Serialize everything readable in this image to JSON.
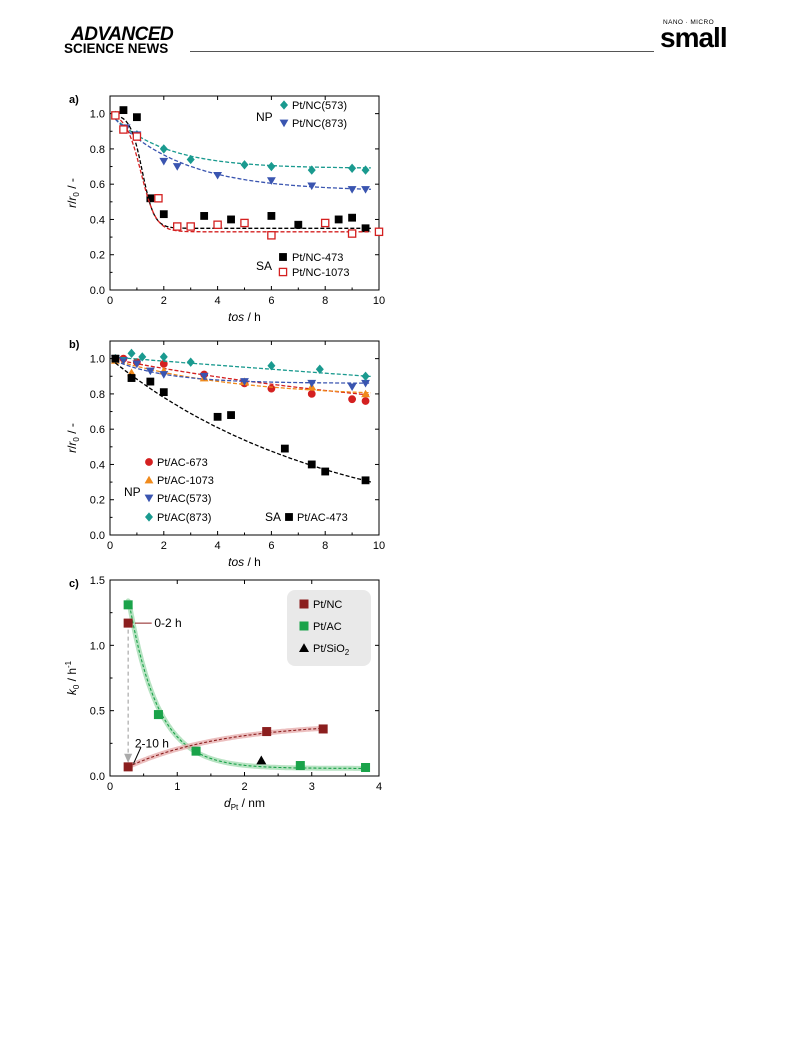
{
  "header": {
    "brand_line1": "ADVANCED",
    "brand_line2": "SCIENCE NEWS",
    "journal_top": "NANO · MICRO",
    "journal_name": "small"
  },
  "chart_data": [
    {
      "panel_label": "a)",
      "type": "scatter",
      "xlabel_italic": "tos",
      "xlabel_unit": " / h",
      "ylabel_italic": "r",
      "ylabel_mid": "/",
      "ylabel_italic2": "r",
      "ylabel_sub": "0",
      "ylabel_unit": " / -",
      "xlim": [
        0,
        10
      ],
      "ylim": [
        0,
        1.1
      ],
      "xticks": [
        "0",
        "2",
        "4",
        "6",
        "8",
        "10"
      ],
      "yticks": [
        "0.0",
        "0.2",
        "0.4",
        "0.6",
        "0.8",
        "1.0"
      ],
      "grid": false,
      "legend_groups": [
        {
          "label": "NP",
          "series_indices": [
            0,
            1
          ],
          "placement": "top-right"
        },
        {
          "label": "SA",
          "series_indices": [
            2,
            3
          ],
          "placement": "bottom-right"
        }
      ],
      "series": [
        {
          "name": "Pt/NC(573)",
          "color": "#1a9a8f",
          "marker": "diamond",
          "filled": true,
          "x": [
            0.2,
            1.0,
            2.0,
            3.0,
            5.0,
            6.0,
            7.5,
            9.0,
            9.5
          ],
          "y": [
            0.99,
            0.88,
            0.8,
            0.74,
            0.71,
            0.7,
            0.68,
            0.69,
            0.68
          ],
          "fit": {
            "A": 0.69,
            "B": 0.31,
            "k": 0.5,
            "t0": 0
          }
        },
        {
          "name": "Pt/NC(873)",
          "color": "#3a55b0",
          "marker": "triangle-down",
          "filled": true,
          "x": [
            0.2,
            0.6,
            1.0,
            2.0,
            2.5,
            4.0,
            6.0,
            7.5,
            9.0,
            9.5
          ],
          "y": [
            0.99,
            0.92,
            0.88,
            0.73,
            0.7,
            0.65,
            0.62,
            0.59,
            0.57,
            0.57
          ],
          "fit": {
            "A": 0.56,
            "B": 0.44,
            "k": 0.38,
            "t0": 0
          }
        },
        {
          "name": "Pt/NC-473",
          "color": "#000000",
          "marker": "square",
          "filled": true,
          "x": [
            0.2,
            0.5,
            1.0,
            1.5,
            2.0,
            3.5,
            4.5,
            6.0,
            7.0,
            8.5,
            9.0,
            9.5
          ],
          "y": [
            0.99,
            1.02,
            0.98,
            0.52,
            0.43,
            0.42,
            0.4,
            0.42,
            0.37,
            0.4,
            0.41,
            0.35
          ],
          "fit": {
            "A": 0.35,
            "B": 0.65,
            "k": 0.1,
            "t0": 0,
            "sigmoid": {
              "c": 1.2,
              "w": 0.22
            }
          }
        },
        {
          "name": "Pt/NC-1073",
          "color": "#d42020",
          "marker": "square",
          "filled": false,
          "x": [
            0.2,
            0.5,
            1.0,
            1.8,
            2.5,
            3.0,
            4.0,
            5.0,
            6.0,
            8.0,
            9.0,
            10.0
          ],
          "y": [
            0.99,
            0.91,
            0.87,
            0.52,
            0.36,
            0.36,
            0.37,
            0.38,
            0.31,
            0.38,
            0.32,
            0.33
          ],
          "fit": {
            "A": 0.33,
            "B": 0.66,
            "k": 0.1,
            "t0": 0,
            "sigmoid": {
              "c": 1.15,
              "w": 0.28
            }
          }
        }
      ]
    },
    {
      "panel_label": "b)",
      "type": "scatter",
      "xlabel_italic": "tos",
      "xlabel_unit": " / h",
      "ylabel_italic": "r",
      "ylabel_mid": "/",
      "ylabel_italic2": "r",
      "ylabel_sub": "0",
      "ylabel_unit": " / -",
      "xlim": [
        0,
        10
      ],
      "ylim": [
        0,
        1.1
      ],
      "xticks": [
        "0",
        "2",
        "4",
        "6",
        "8",
        "10"
      ],
      "yticks": [
        "0.0",
        "0.2",
        "0.4",
        "0.6",
        "0.8",
        "1.0"
      ],
      "grid": false,
      "legend_groups": [
        {
          "label": "NP",
          "series_indices": [
            0,
            1,
            2,
            3
          ],
          "placement": "bottom-left"
        },
        {
          "label": "SA",
          "series_indices": [
            4
          ],
          "placement": "bottom-right"
        }
      ],
      "series": [
        {
          "name": "Pt/AC-673",
          "color": "#d42020",
          "marker": "circle",
          "filled": true,
          "x": [
            0.2,
            0.5,
            1.0,
            2.0,
            3.5,
            5.0,
            6.0,
            7.5,
            9.0,
            9.5
          ],
          "y": [
            1.0,
            1.0,
            0.98,
            0.97,
            0.91,
            0.86,
            0.83,
            0.8,
            0.77,
            0.76
          ],
          "fit": {
            "A": 0.6,
            "B": 0.4,
            "k": 0.075,
            "t0": 0
          }
        },
        {
          "name": "Pt/AC-1073",
          "color": "#f08a1c",
          "marker": "triangle-up",
          "filled": true,
          "x": [
            0.2,
            0.8,
            2.0,
            3.5,
            5.0,
            7.5,
            9.5
          ],
          "y": [
            0.99,
            0.92,
            0.93,
            0.89,
            0.87,
            0.84,
            0.8
          ],
          "fit": {
            "A": 0.78,
            "B": 0.22,
            "k": 0.22,
            "t0": 0
          }
        },
        {
          "name": "Pt/AC(573)",
          "color": "#3a55b0",
          "marker": "triangle-down",
          "filled": true,
          "x": [
            0.2,
            0.5,
            1.0,
            1.5,
            2.0,
            3.5,
            5.0,
            7.5,
            9.0,
            9.5
          ],
          "y": [
            1.0,
            0.99,
            0.97,
            0.93,
            0.91,
            0.9,
            0.87,
            0.86,
            0.84,
            0.86
          ],
          "fit": {
            "A": 0.86,
            "B": 0.14,
            "k": 0.5,
            "t0": 0
          }
        },
        {
          "name": "Pt/AC(873)",
          "color": "#1a9a8f",
          "marker": "diamond",
          "filled": true,
          "x": [
            0.2,
            0.8,
            1.2,
            2.0,
            3.0,
            6.0,
            7.8,
            9.5
          ],
          "y": [
            1.0,
            1.03,
            1.01,
            1.01,
            0.98,
            0.96,
            0.94,
            0.9
          ],
          "fit": {
            "A": 0.0,
            "B": 1.01,
            "k": 0.012,
            "t0": 0
          }
        },
        {
          "name": "Pt/AC-473",
          "color": "#000000",
          "marker": "square",
          "filled": true,
          "x": [
            0.2,
            0.8,
            1.5,
            2.0,
            4.0,
            4.5,
            6.5,
            7.5,
            8.0,
            9.5
          ],
          "y": [
            1.0,
            0.89,
            0.87,
            0.81,
            0.67,
            0.68,
            0.49,
            0.4,
            0.36,
            0.31
          ],
          "fit": {
            "A": 0.0,
            "B": 1.0,
            "k": 0.124,
            "t0": 0
          }
        }
      ]
    },
    {
      "panel_label": "c)",
      "type": "scatter",
      "xlabel_italic": "d",
      "xlabel_sub": "Pt",
      "xlabel_unit": " / nm",
      "ylabel_italic": "k",
      "ylabel_sub": "0",
      "ylabel_unit": " / h",
      "ylabel_sup": "-1",
      "xlim": [
        0,
        4
      ],
      "ylim": [
        0,
        1.5
      ],
      "xticks": [
        "0",
        "1",
        "2",
        "3",
        "4"
      ],
      "yticks": [
        "0.0",
        "0.5",
        "1.0",
        "1.5"
      ],
      "grid": false,
      "legend_placement": "top-right",
      "annotations": [
        {
          "text": "0-2 h"
        },
        {
          "text": "2-10 h"
        }
      ],
      "series": [
        {
          "name": "Pt/NC",
          "color": "#8b1e1e",
          "marker": "square",
          "filled": true,
          "x": [
            0.27,
            0.27,
            2.33,
            3.17
          ],
          "y": [
            1.17,
            0.07,
            0.34,
            0.36
          ]
        },
        {
          "name": "Pt/AC",
          "color": "#1aa34a",
          "marker": "square",
          "filled": true,
          "x": [
            0.27,
            0.72,
            1.28,
            2.83,
            3.8
          ],
          "y": [
            1.31,
            0.47,
            0.19,
            0.08,
            0.065
          ]
        },
        {
          "name": "Pt/SiO",
          "name_sub": "2",
          "color": "#000000",
          "marker": "triangle-up",
          "filled": true,
          "x": [
            2.25
          ],
          "y": [
            0.12
          ]
        }
      ]
    }
  ]
}
